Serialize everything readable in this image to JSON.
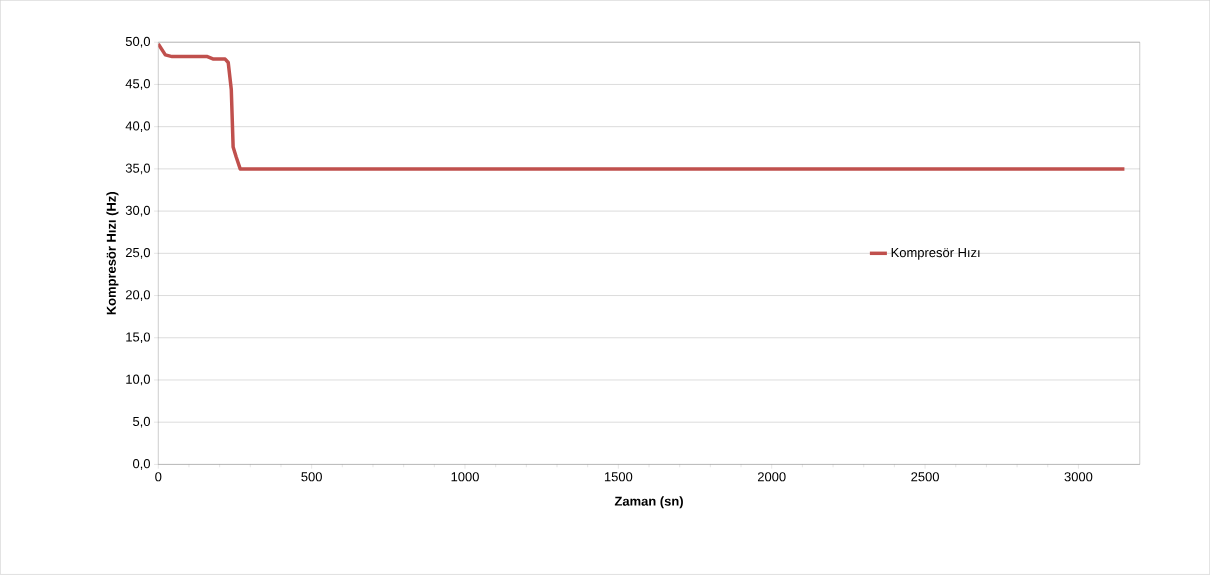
{
  "chart_data": {
    "type": "line",
    "xlabel": "Zaman (sn)",
    "ylabel": "Kompresör Hızı (Hz)",
    "x": [
      0,
      23,
      45,
      160,
      180,
      218,
      228,
      238,
      244,
      254,
      267,
      3150
    ],
    "series": [
      {
        "name": "Kompresör Hızı",
        "color": "#c0504d",
        "values": [
          49.8,
          48.5,
          48.3,
          48.3,
          48.0,
          48.0,
          47.6,
          44.4,
          37.6,
          36.4,
          35.0,
          35.0
        ]
      }
    ],
    "xlim": [
      0,
      3200
    ],
    "xticks": [
      0,
      500,
      1000,
      1500,
      2000,
      2500,
      3000
    ],
    "ylim": [
      0,
      50
    ],
    "yticks": [
      {
        "value": 0,
        "label": "0,0"
      },
      {
        "value": 5,
        "label": "5,0"
      },
      {
        "value": 10,
        "label": "10,0"
      },
      {
        "value": 15,
        "label": "15,0"
      },
      {
        "value": 20,
        "label": "20,0"
      },
      {
        "value": 25,
        "label": "25,0"
      },
      {
        "value": 30,
        "label": "30,0"
      },
      {
        "value": 35,
        "label": "35,0"
      },
      {
        "value": 40,
        "label": "40,0"
      },
      {
        "value": 45,
        "label": "45,0"
      },
      {
        "value": 50,
        "label": "50,0"
      }
    ],
    "grid": "y",
    "legend": "right",
    "marker": "none",
    "line_style": "solid"
  }
}
